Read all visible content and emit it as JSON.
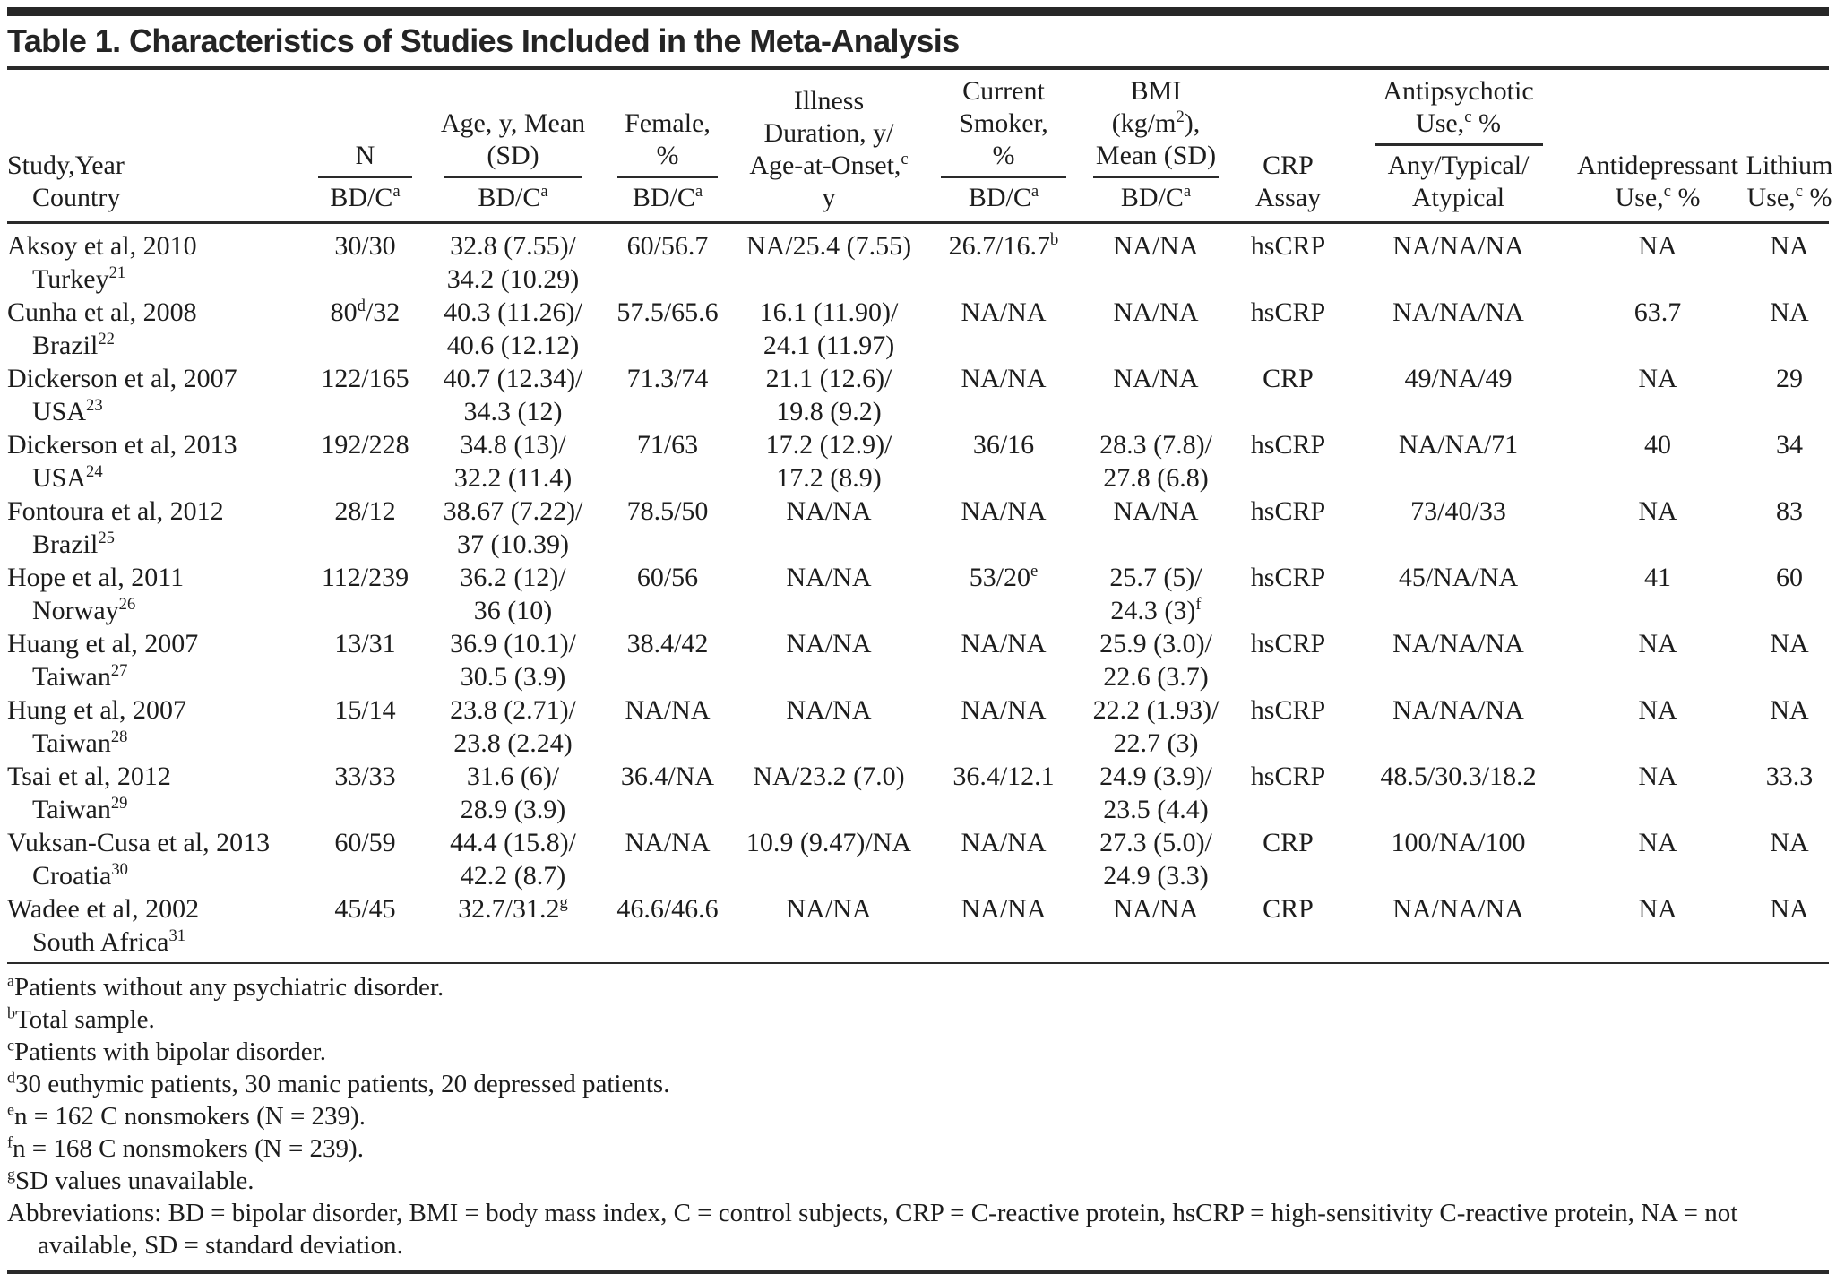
{
  "table": {
    "title": "Table 1. Characteristics of Studies Included in the Meta-Analysis",
    "columns": [
      {
        "id": "study",
        "align": "left",
        "top": [
          "Study,Year"
        ],
        "ruled": false,
        "bottom": [
          "Country"
        ]
      },
      {
        "id": "n",
        "align": "center",
        "top": [
          "N"
        ],
        "ruled": true,
        "bottom": [
          "BD/C^{a}"
        ]
      },
      {
        "id": "age",
        "align": "center",
        "top": [
          "Age, y, Mean",
          "(SD)"
        ],
        "ruled": true,
        "bottom": [
          "BD/C^{a}"
        ]
      },
      {
        "id": "female",
        "align": "center",
        "top": [
          "Female,",
          "%"
        ],
        "ruled": true,
        "bottom": [
          "BD/C^{a}"
        ]
      },
      {
        "id": "illness",
        "align": "center",
        "top": [
          "Illness",
          "Duration, y/",
          "Age-at-Onset,^{c}"
        ],
        "ruled": false,
        "bottom": [
          "y"
        ]
      },
      {
        "id": "smoker",
        "align": "center",
        "top": [
          "Current",
          "Smoker,",
          "%"
        ],
        "ruled": true,
        "bottom": [
          "BD/C^{a}"
        ]
      },
      {
        "id": "bmi",
        "align": "center",
        "top": [
          "BMI",
          "(kg/m^{2}),",
          "Mean (SD)"
        ],
        "ruled": true,
        "bottom": [
          "BD/C^{a}"
        ]
      },
      {
        "id": "crp",
        "align": "center",
        "top": [
          "CRP"
        ],
        "ruled": false,
        "bottom": [
          "Assay"
        ]
      },
      {
        "id": "antipsychotic",
        "align": "center",
        "top": [
          "Antipsychotic",
          "Use,^{c} %"
        ],
        "ruled": true,
        "bottom": [
          "Any/Typical/",
          "Atypical"
        ]
      },
      {
        "id": "antidepressant",
        "align": "center",
        "top": [
          "Antidepressant"
        ],
        "ruled": false,
        "bottom": [
          "Use,^{c} %"
        ]
      },
      {
        "id": "lithium",
        "align": "center",
        "top": [
          "Lithium"
        ],
        "ruled": false,
        "bottom": [
          "Use,^{c} %"
        ]
      }
    ],
    "rows": [
      {
        "study": [
          "Aksoy et al, 2010",
          "Turkey^{21}"
        ],
        "n": [
          "30/30"
        ],
        "age": [
          "32.8 (7.55)/",
          "34.2 (10.29)"
        ],
        "female": [
          "60/56.7"
        ],
        "illness": [
          "NA/25.4 (7.55)"
        ],
        "smoker": [
          "26.7/16.7^{b}"
        ],
        "bmi": [
          "NA/NA"
        ],
        "crp": [
          "hsCRP"
        ],
        "antipsychotic": [
          "NA/NA/NA"
        ],
        "antidepressant": [
          "NA"
        ],
        "lithium": [
          "NA"
        ]
      },
      {
        "study": [
          "Cunha et al, 2008",
          "Brazil^{22}"
        ],
        "n": [
          "80^{d}/32"
        ],
        "age": [
          "40.3 (11.26)/",
          "40.6 (12.12)"
        ],
        "female": [
          "57.5/65.6"
        ],
        "illness": [
          "16.1 (11.90)/",
          "24.1 (11.97)"
        ],
        "smoker": [
          "NA/NA"
        ],
        "bmi": [
          "NA/NA"
        ],
        "crp": [
          "hsCRP"
        ],
        "antipsychotic": [
          "NA/NA/NA"
        ],
        "antidepressant": [
          "63.7"
        ],
        "lithium": [
          "NA"
        ]
      },
      {
        "study": [
          "Dickerson et al, 2007",
          "USA^{23}"
        ],
        "n": [
          "122/165"
        ],
        "age": [
          "40.7 (12.34)/",
          "34.3 (12)"
        ],
        "female": [
          "71.3/74"
        ],
        "illness": [
          "21.1 (12.6)/",
          "19.8 (9.2)"
        ],
        "smoker": [
          "NA/NA"
        ],
        "bmi": [
          "NA/NA"
        ],
        "crp": [
          "CRP"
        ],
        "antipsychotic": [
          "49/NA/49"
        ],
        "antidepressant": [
          "NA"
        ],
        "lithium": [
          "29"
        ]
      },
      {
        "study": [
          "Dickerson et al, 2013",
          "USA^{24}"
        ],
        "n": [
          "192/228"
        ],
        "age": [
          "34.8 (13)/",
          "32.2 (11.4)"
        ],
        "female": [
          "71/63"
        ],
        "illness": [
          "17.2 (12.9)/",
          "17.2 (8.9)"
        ],
        "smoker": [
          "36/16"
        ],
        "bmi": [
          "28.3 (7.8)/",
          "27.8 (6.8)"
        ],
        "crp": [
          "hsCRP"
        ],
        "antipsychotic": [
          "NA/NA/71"
        ],
        "antidepressant": [
          "40"
        ],
        "lithium": [
          "34"
        ]
      },
      {
        "study": [
          "Fontoura et al, 2012",
          "Brazil^{25}"
        ],
        "n": [
          "28/12"
        ],
        "age": [
          "38.67 (7.22)/",
          "37 (10.39)"
        ],
        "female": [
          "78.5/50"
        ],
        "illness": [
          "NA/NA"
        ],
        "smoker": [
          "NA/NA"
        ],
        "bmi": [
          "NA/NA"
        ],
        "crp": [
          "hsCRP"
        ],
        "antipsychotic": [
          "73/40/33"
        ],
        "antidepressant": [
          "NA"
        ],
        "lithium": [
          "83"
        ]
      },
      {
        "study": [
          "Hope et al, 2011",
          "Norway^{26}"
        ],
        "n": [
          "112/239"
        ],
        "age": [
          "36.2 (12)/",
          "36 (10)"
        ],
        "female": [
          "60/56"
        ],
        "illness": [
          "NA/NA"
        ],
        "smoker": [
          "53/20^{e}"
        ],
        "bmi": [
          "25.7 (5)/",
          "24.3 (3)^{f}"
        ],
        "crp": [
          "hsCRP"
        ],
        "antipsychotic": [
          "45/NA/NA"
        ],
        "antidepressant": [
          "41"
        ],
        "lithium": [
          "60"
        ]
      },
      {
        "study": [
          "Huang et al, 2007",
          "Taiwan^{27}"
        ],
        "n": [
          "13/31"
        ],
        "age": [
          "36.9 (10.1)/",
          "30.5 (3.9)"
        ],
        "female": [
          "38.4/42"
        ],
        "illness": [
          "NA/NA"
        ],
        "smoker": [
          "NA/NA"
        ],
        "bmi": [
          "25.9 (3.0)/",
          "22.6 (3.7)"
        ],
        "crp": [
          "hsCRP"
        ],
        "antipsychotic": [
          "NA/NA/NA"
        ],
        "antidepressant": [
          "NA"
        ],
        "lithium": [
          "NA"
        ]
      },
      {
        "study": [
          "Hung et al, 2007",
          "Taiwan^{28}"
        ],
        "n": [
          "15/14"
        ],
        "age": [
          "23.8 (2.71)/",
          "23.8 (2.24)"
        ],
        "female": [
          "NA/NA"
        ],
        "illness": [
          "NA/NA"
        ],
        "smoker": [
          "NA/NA"
        ],
        "bmi": [
          "22.2 (1.93)/",
          "22.7 (3)"
        ],
        "crp": [
          "hsCRP"
        ],
        "antipsychotic": [
          "NA/NA/NA"
        ],
        "antidepressant": [
          "NA"
        ],
        "lithium": [
          "NA"
        ]
      },
      {
        "study": [
          "Tsai et al, 2012",
          "Taiwan^{29}"
        ],
        "n": [
          "33/33"
        ],
        "age": [
          "31.6 (6)/",
          "28.9 (3.9)"
        ],
        "female": [
          "36.4/NA"
        ],
        "illness": [
          "NA/23.2 (7.0)"
        ],
        "smoker": [
          "36.4/12.1"
        ],
        "bmi": [
          "24.9 (3.9)/",
          "23.5 (4.4)"
        ],
        "crp": [
          "hsCRP"
        ],
        "antipsychotic": [
          "48.5/30.3/18.2"
        ],
        "antidepressant": [
          "NA"
        ],
        "lithium": [
          "33.3"
        ]
      },
      {
        "study": [
          "Vuksan-Cusa et al, 2013",
          "Croatia^{30}"
        ],
        "n": [
          "60/59"
        ],
        "age": [
          "44.4 (15.8)/",
          "42.2 (8.7)"
        ],
        "female": [
          "NA/NA"
        ],
        "illness": [
          "10.9 (9.47)/NA"
        ],
        "smoker": [
          "NA/NA"
        ],
        "bmi": [
          "27.3 (5.0)/",
          "24.9 (3.3)"
        ],
        "crp": [
          "CRP"
        ],
        "antipsychotic": [
          "100/NA/100"
        ],
        "antidepressant": [
          "NA"
        ],
        "lithium": [
          "NA"
        ]
      },
      {
        "study": [
          "Wadee et al, 2002",
          "South Africa^{31}"
        ],
        "n": [
          "45/45"
        ],
        "age": [
          "32.7/31.2^{g}"
        ],
        "female": [
          "46.6/46.6"
        ],
        "illness": [
          "NA/NA"
        ],
        "smoker": [
          "NA/NA"
        ],
        "bmi": [
          "NA/NA"
        ],
        "crp": [
          "CRP"
        ],
        "antipsychotic": [
          "NA/NA/NA"
        ],
        "antidepressant": [
          "NA"
        ],
        "lithium": [
          "NA"
        ]
      }
    ],
    "footnotes": [
      "^{a}Patients without any psychiatric disorder.",
      "^{b}Total sample.",
      "^{c}Patients with bipolar disorder.",
      "^{d}30 euthymic patients, 30 manic patients, 20 depressed patients.",
      "^{e}n = 162 C nonsmokers (N = 239).",
      "^{f}n = 168 C nonsmokers (N = 239).",
      "^{g}SD values unavailable.",
      "Abbreviations: BD = bipolar disorder, BMI = body mass index, C = control subjects, CRP = C-reactive protein, hsCRP = high-sensitivity C-reactive protein, NA = not available, SD = standard deviation."
    ]
  }
}
